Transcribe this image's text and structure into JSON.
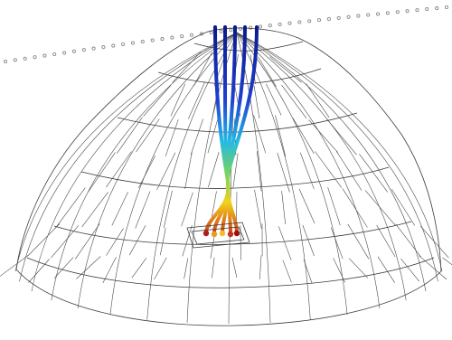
{
  "figure": {
    "elements": [
      "dashed-tracking-arc",
      "wireframe-dome",
      "focused-beams",
      "target-sensor",
      "focus-points"
    ],
    "beam_count": 5,
    "colors": {
      "mesh": "#3a3a3a",
      "beam_top": "#0a1a8c",
      "beam_mid_blue": "#1f6fff",
      "beam_cyan": "#22d3e6",
      "beam_green": "#7ad65a",
      "beam_yellow": "#f2d21c",
      "beam_red": "#c0221c",
      "focus_points": [
        "#b51a1a",
        "#e0a020",
        "#f0c020",
        "#c83020",
        "#9a1010"
      ],
      "dotted_arc": "#8a8a8a"
    }
  }
}
